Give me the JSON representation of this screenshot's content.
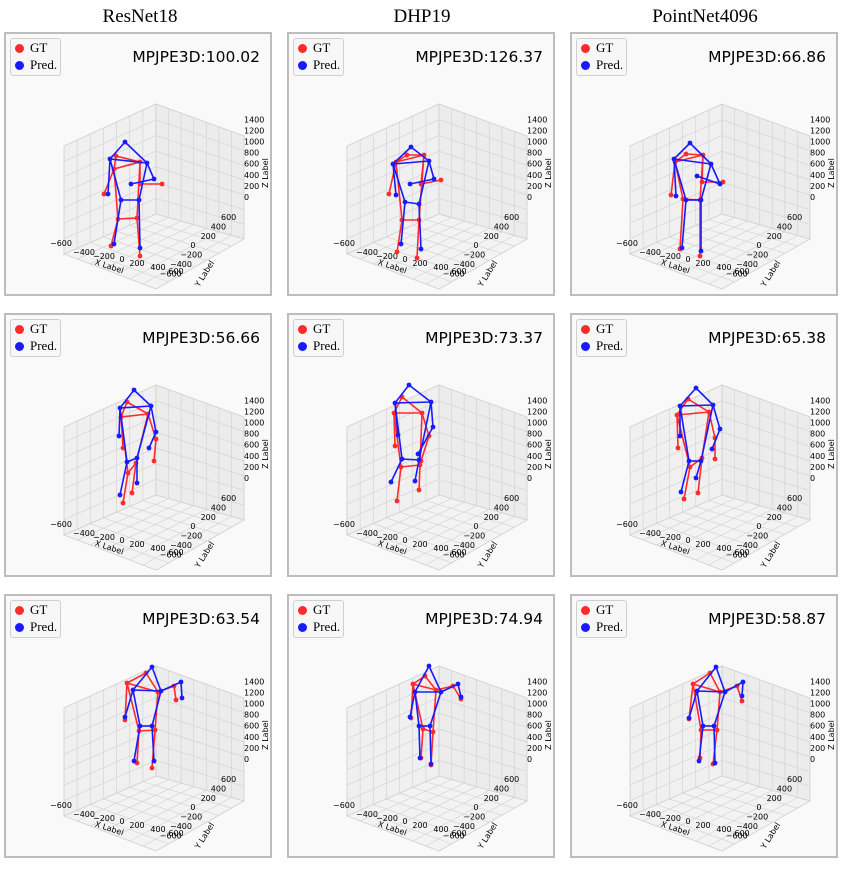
{
  "columns": [
    "ResNet18",
    "DHP19",
    "PointNet4096"
  ],
  "legend": {
    "gt": "GT",
    "pred": "Pred."
  },
  "colors": {
    "gt": "#ff2a2a",
    "pred": "#1a1aff"
  },
  "axis_labels": {
    "x": "X Label",
    "y": "Y Label",
    "z": "Z Label"
  },
  "ticks": {
    "z": [
      "0",
      "200",
      "400",
      "600",
      "800",
      "1000",
      "1200",
      "1400"
    ],
    "y": [
      "600",
      "400",
      "200",
      "0",
      "−200",
      "−400",
      "−600"
    ],
    "x": [
      "−600",
      "−400",
      "−200",
      "0",
      "200",
      "400",
      "600"
    ]
  },
  "chart_data": [
    {
      "type": "scatter",
      "panel": "row1-resnet18",
      "metric_label": "MPJPE3D:100.02",
      "metric": 100.02,
      "zlim": [
        0,
        1400
      ],
      "ylim": [
        -600,
        600
      ],
      "xlim": [
        -600,
        600
      ]
    },
    {
      "type": "scatter",
      "panel": "row1-dhp19",
      "metric_label": "MPJPE3D:126.37",
      "metric": 126.37,
      "zlim": [
        0,
        1400
      ],
      "ylim": [
        -600,
        600
      ],
      "xlim": [
        -600,
        600
      ]
    },
    {
      "type": "scatter",
      "panel": "row1-pointnet4096",
      "metric_label": "MPJPE3D:66.86",
      "metric": 66.86,
      "zlim": [
        0,
        1400
      ],
      "ylim": [
        -600,
        600
      ],
      "xlim": [
        -600,
        600
      ]
    },
    {
      "type": "scatter",
      "panel": "row2-resnet18",
      "metric_label": "MPJPE3D:56.66",
      "metric": 56.66,
      "zlim": [
        0,
        1400
      ],
      "ylim": [
        -600,
        600
      ],
      "xlim": [
        -600,
        600
      ]
    },
    {
      "type": "scatter",
      "panel": "row2-dhp19",
      "metric_label": "MPJPE3D:73.37",
      "metric": 73.37,
      "zlim": [
        0,
        1400
      ],
      "ylim": [
        -600,
        600
      ],
      "xlim": [
        -600,
        600
      ]
    },
    {
      "type": "scatter",
      "panel": "row2-pointnet4096",
      "metric_label": "MPJPE3D:65.38",
      "metric": 65.38,
      "zlim": [
        0,
        1400
      ],
      "ylim": [
        -600,
        600
      ],
      "xlim": [
        -600,
        600
      ]
    },
    {
      "type": "scatter",
      "panel": "row3-resnet18",
      "metric_label": "MPJPE3D:63.54",
      "metric": 63.54,
      "zlim": [
        0,
        1400
      ],
      "ylim": [
        -600,
        600
      ],
      "xlim": [
        -600,
        600
      ]
    },
    {
      "type": "scatter",
      "panel": "row3-dhp19",
      "metric_label": "MPJPE3D:74.94",
      "metric": 74.94,
      "zlim": [
        0,
        1400
      ],
      "ylim": [
        -600,
        600
      ],
      "xlim": [
        -600,
        600
      ]
    },
    {
      "type": "scatter",
      "panel": "row3-pointnet4096",
      "metric_label": "MPJPE3D:58.87",
      "metric": 58.87,
      "zlim": [
        0,
        1400
      ],
      "ylim": [
        -600,
        600
      ],
      "xlim": [
        -600,
        600
      ]
    }
  ]
}
